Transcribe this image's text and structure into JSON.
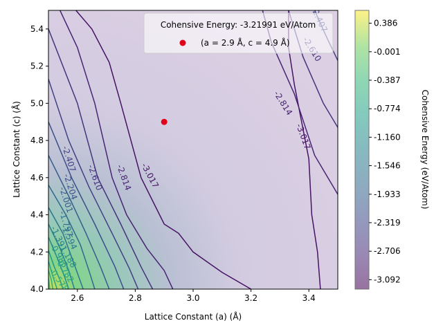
{
  "chart_data": {
    "type": "contour",
    "xlabel": "Lattice Constant (a) (Å)",
    "ylabel": "Lattice Constant (c) (Å)",
    "colorbar_label": "Cohensive Energy (eV/Atom)",
    "xlim": [
      2.5,
      3.5
    ],
    "ylim": [
      4.0,
      5.5
    ],
    "xticks": [
      "2.6",
      "2.8",
      "3.0",
      "3.2",
      "3.4"
    ],
    "yticks": [
      "4.0",
      "4.2",
      "4.4",
      "4.6",
      "4.8",
      "5.0",
      "5.2",
      "5.4"
    ],
    "colorbar_range": [
      -3.22,
      0.56
    ],
    "colorbar_ticks": [
      "0.386",
      "-0.001",
      "-0.387",
      "-0.774",
      "-1.160",
      "-1.546",
      "-1.933",
      "-2.319",
      "-2.706",
      "-3.092"
    ],
    "colormap": "viridis",
    "marker": {
      "a": 2.9,
      "c": 4.9,
      "color": "#e0001b"
    },
    "legend": {
      "title": "Cohensive Energy: -3.21991 eV/Atom",
      "entry": "(a = 2.9 Å, c = 4.9 Å)",
      "position": "top-right"
    },
    "contours": [
      {
        "label": "-3.017",
        "level": -3.017,
        "x": [
          2.595,
          2.65,
          2.71,
          2.75,
          2.82,
          2.9,
          2.95,
          3.0,
          3.1,
          3.2
        ],
        "y": [
          5.5,
          5.4,
          5.22,
          5.0,
          4.6,
          4.35,
          4.3,
          4.2,
          4.09,
          4.0
        ]
      },
      {
        "label": "-3.017",
        "level": -3.017,
        "x": [
          3.33,
          3.33,
          3.35,
          3.4,
          3.41,
          3.43,
          3.44
        ],
        "y": [
          5.5,
          5.3,
          5.1,
          4.7,
          4.4,
          4.2,
          4.0
        ]
      },
      {
        "label": "-2.814",
        "level": -2.814,
        "x": [
          2.54,
          2.6,
          2.66,
          2.72,
          2.77,
          2.84,
          2.9,
          2.93
        ],
        "y": [
          5.5,
          5.3,
          5.0,
          4.6,
          4.4,
          4.22,
          4.1,
          4.0
        ]
      },
      {
        "label": "-2.814",
        "level": -2.814,
        "x": [
          3.24,
          3.27,
          3.35,
          3.42,
          3.5
        ],
        "y": [
          5.5,
          5.33,
          5.05,
          4.72,
          4.51
        ]
      },
      {
        "label": "-2.610",
        "level": -2.61,
        "x": [
          2.5,
          2.6,
          2.67,
          2.75,
          2.82,
          2.86
        ],
        "y": [
          5.4,
          5.0,
          4.6,
          4.35,
          4.12,
          4.0
        ]
      },
      {
        "label": "-2.610",
        "level": -2.61,
        "x": [
          3.33,
          3.38,
          3.45,
          3.5
        ],
        "y": [
          5.5,
          5.25,
          5.0,
          4.87
        ]
      },
      {
        "label": "-2.407",
        "level": -2.407,
        "x": [
          2.5,
          2.57,
          2.64,
          2.72,
          2.78,
          2.81
        ],
        "y": [
          5.13,
          4.8,
          4.55,
          4.3,
          4.11,
          4.0
        ]
      },
      {
        "label": "-2.407",
        "level": -2.407,
        "x": [
          3.42,
          3.46,
          3.5
        ],
        "y": [
          5.5,
          5.36,
          5.23
        ]
      },
      {
        "label": "-2.204",
        "level": -2.204,
        "x": [
          2.5,
          2.58,
          2.66,
          2.73,
          2.76
        ],
        "y": [
          4.9,
          4.6,
          4.35,
          4.12,
          4.0
        ]
      },
      {
        "label": "-2.001",
        "level": -2.001,
        "x": [
          2.5,
          2.57,
          2.63,
          2.68,
          2.71
        ],
        "y": [
          4.72,
          4.5,
          4.3,
          4.12,
          4.0
        ]
      },
      {
        "label": "-1.797",
        "level": -1.797,
        "x": [
          2.5,
          2.56,
          2.61,
          2.64,
          2.66
        ],
        "y": [
          4.56,
          4.4,
          4.24,
          4.1,
          4.0
        ]
      },
      {
        "label": "-1.594",
        "level": -1.594,
        "x": [
          2.5,
          2.55,
          2.59,
          2.62
        ],
        "y": [
          4.44,
          4.3,
          4.13,
          4.0
        ]
      },
      {
        "label": "-1.391",
        "level": -1.391,
        "x": [
          2.5,
          2.54,
          2.57,
          2.59
        ],
        "y": [
          4.35,
          4.22,
          4.1,
          4.0
        ]
      },
      {
        "label": "-1.188",
        "level": -1.188,
        "x": [
          2.5,
          2.53,
          2.555,
          2.57
        ],
        "y": [
          4.28,
          4.17,
          4.07,
          4.0
        ]
      },
      {
        "label": "-0.985",
        "level": -0.985,
        "x": [
          2.5,
          2.52,
          2.54,
          2.55
        ],
        "y": [
          4.21,
          4.12,
          4.05,
          4.0
        ]
      },
      {
        "label": "-0.782",
        "level": -0.782,
        "x": [
          2.5,
          2.515,
          2.53
        ],
        "y": [
          4.15,
          4.07,
          4.0
        ]
      },
      {
        "label": "-0.578",
        "level": -0.578,
        "x": [
          2.5,
          2.51,
          2.515
        ],
        "y": [
          4.1,
          4.05,
          4.0
        ]
      },
      {
        "label": "",
        "level": -0.375,
        "x": [
          2.5,
          2.505
        ],
        "y": [
          4.06,
          4.0
        ]
      },
      {
        "label": "",
        "level": -0.172,
        "x": [
          2.5,
          2.502
        ],
        "y": [
          4.03,
          4.0
        ]
      }
    ],
    "contour_labels": [
      {
        "text": "-3.017",
        "x": 2.85,
        "y": 4.61,
        "angle": 62
      },
      {
        "text": "-3.017",
        "x": 3.38,
        "y": 4.82,
        "angle": 70
      },
      {
        "text": "-2.814",
        "x": 2.76,
        "y": 4.6,
        "angle": 70
      },
      {
        "text": "-2.814",
        "x": 3.31,
        "y": 5.0,
        "angle": 58
      },
      {
        "text": "-2.610",
        "x": 2.66,
        "y": 4.6,
        "angle": 70
      },
      {
        "text": "-2.610",
        "x": 3.41,
        "y": 5.29,
        "angle": 58
      },
      {
        "text": "-2.407",
        "x": 2.57,
        "y": 4.7,
        "angle": 72
      },
      {
        "text": "-2.407",
        "x": 3.435,
        "y": 5.45,
        "angle": 65
      },
      {
        "text": "-2.204",
        "x": 2.575,
        "y": 4.55,
        "angle": 72
      },
      {
        "text": "-2.001",
        "x": 2.56,
        "y": 4.48,
        "angle": 72
      },
      {
        "text": "-1.797",
        "x": 2.56,
        "y": 4.35,
        "angle": 72
      },
      {
        "text": "-1.594",
        "x": 2.57,
        "y": 4.28,
        "angle": 65
      },
      {
        "text": "-1.391",
        "x": 2.535,
        "y": 4.27,
        "angle": 65
      },
      {
        "text": "-1.188",
        "x": 2.565,
        "y": 4.18,
        "angle": 60
      },
      {
        "text": "-0.985",
        "x": 2.535,
        "y": 4.18,
        "angle": 60
      },
      {
        "text": "-0.782",
        "x": 2.555,
        "y": 4.1,
        "angle": 58
      },
      {
        "text": "-0.578",
        "x": 2.535,
        "y": 4.05,
        "angle": 55
      }
    ]
  }
}
